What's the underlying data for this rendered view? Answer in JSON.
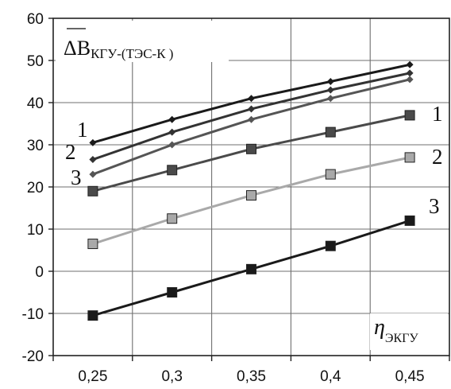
{
  "chart_data": {
    "type": "line",
    "title": "",
    "ylabel_main": "ΔB",
    "ylabel_sub": "КГУ-(ТЭС-К )",
    "xlabel_main": "η",
    "xlabel_sub": "ЭКГУ",
    "x": [
      0.25,
      0.3,
      0.35,
      0.4,
      0.45
    ],
    "x_tick_labels": [
      "0,25",
      "0,3",
      "0,35",
      "0,4",
      "0,45"
    ],
    "y_tick_labels": [
      "60",
      "50",
      "40",
      "30",
      "20",
      "10",
      "0",
      "-10",
      "-20"
    ],
    "y_ticks": [
      60,
      50,
      40,
      30,
      20,
      10,
      0,
      -10,
      -20
    ],
    "xlim": [
      0.225,
      0.475
    ],
    "ylim": [
      -20,
      60
    ],
    "grid": true,
    "series": [
      {
        "name": "1",
        "marker": "diamond",
        "color": "#1a1a1a",
        "values": [
          30.5,
          36,
          41,
          45,
          49
        ]
      },
      {
        "name": "2",
        "marker": "diamond",
        "color": "#333333",
        "values": [
          26.5,
          33,
          38.5,
          43,
          47
        ]
      },
      {
        "name": "3",
        "marker": "diamond",
        "color": "#555555",
        "values": [
          23,
          30,
          36,
          41,
          45.5
        ]
      },
      {
        "name": "1",
        "marker": "square",
        "color": "#4a4a4a",
        "values": [
          19,
          24,
          29,
          33,
          37
        ]
      },
      {
        "name": "2",
        "marker": "square",
        "color": "#a9a9a9",
        "values": [
          6.5,
          12.5,
          18,
          23,
          27
        ]
      },
      {
        "name": "3",
        "marker": "square",
        "color": "#1a1a1a",
        "values": [
          -10.5,
          -5,
          0.5,
          6,
          12
        ]
      }
    ]
  }
}
